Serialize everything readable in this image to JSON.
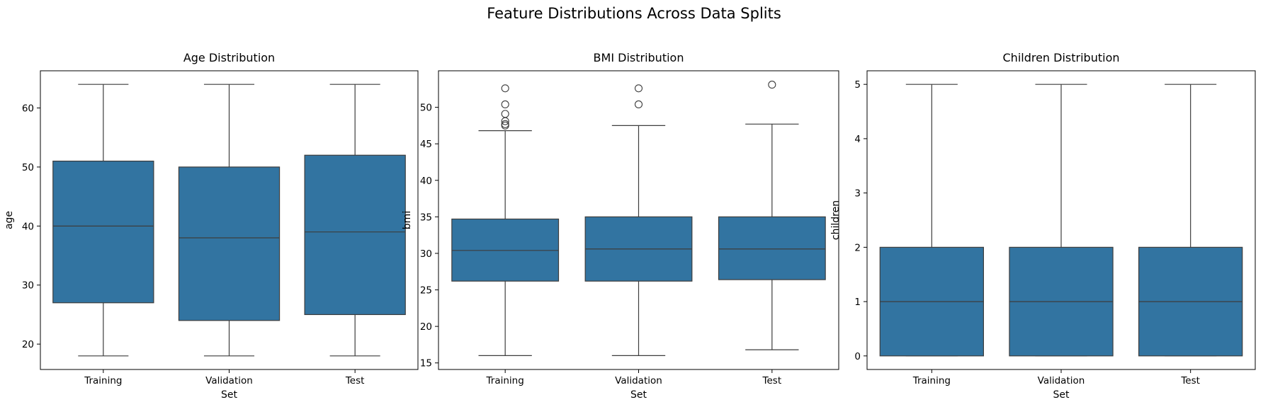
{
  "figure": {
    "suptitle": "Feature Distributions Across Data Splits"
  },
  "colors": {
    "box_fill": "#3274a1",
    "line": "#3d3d3d",
    "axis": "#000000",
    "background": "#ffffff"
  },
  "chart_data": [
    {
      "type": "box",
      "title": "Age Distribution",
      "xlabel": "Set",
      "ylabel": "age",
      "categories": [
        "Training",
        "Validation",
        "Test"
      ],
      "ylim": [
        15.7,
        66.3
      ],
      "yticks": [
        20,
        30,
        40,
        50,
        60
      ],
      "boxes": [
        {
          "whislo": 18,
          "q1": 27,
          "med": 40,
          "q3": 51,
          "whishi": 64,
          "fliers": []
        },
        {
          "whislo": 18,
          "q1": 24,
          "med": 38,
          "q3": 50,
          "whishi": 64,
          "fliers": []
        },
        {
          "whislo": 18,
          "q1": 25,
          "med": 39,
          "q3": 52,
          "whishi": 64,
          "fliers": []
        }
      ]
    },
    {
      "type": "box",
      "title": "BMI Distribution",
      "xlabel": "Set",
      "ylabel": "bmi",
      "categories": [
        "Training",
        "Validation",
        "Test"
      ],
      "ylim": [
        14.1,
        55.0
      ],
      "yticks": [
        15,
        20,
        25,
        30,
        35,
        40,
        45,
        50
      ],
      "boxes": [
        {
          "whislo": 16.0,
          "q1": 26.2,
          "med": 30.4,
          "q3": 34.7,
          "whishi": 46.8,
          "fliers": [
            47.5,
            47.7,
            48.1,
            49.1,
            50.4,
            52.6
          ]
        },
        {
          "whislo": 16.0,
          "q1": 26.2,
          "med": 30.6,
          "q3": 35.0,
          "whishi": 47.5,
          "fliers": [
            50.4,
            52.6
          ]
        },
        {
          "whislo": 16.8,
          "q1": 26.4,
          "med": 30.6,
          "q3": 35.0,
          "whishi": 47.7,
          "fliers": [
            53.1
          ]
        }
      ]
    },
    {
      "type": "box",
      "title": "Children Distribution",
      "xlabel": "Set",
      "ylabel": "children",
      "categories": [
        "Training",
        "Validation",
        "Test"
      ],
      "ylim": [
        -0.25,
        5.25
      ],
      "yticks": [
        0,
        1,
        2,
        3,
        4,
        5
      ],
      "boxes": [
        {
          "whislo": 0,
          "q1": 0,
          "med": 1,
          "q3": 2,
          "whishi": 5,
          "fliers": []
        },
        {
          "whislo": 0,
          "q1": 0,
          "med": 1,
          "q3": 2,
          "whishi": 5,
          "fliers": []
        },
        {
          "whislo": 0,
          "q1": 0,
          "med": 1,
          "q3": 2,
          "whishi": 5,
          "fliers": []
        }
      ]
    }
  ]
}
